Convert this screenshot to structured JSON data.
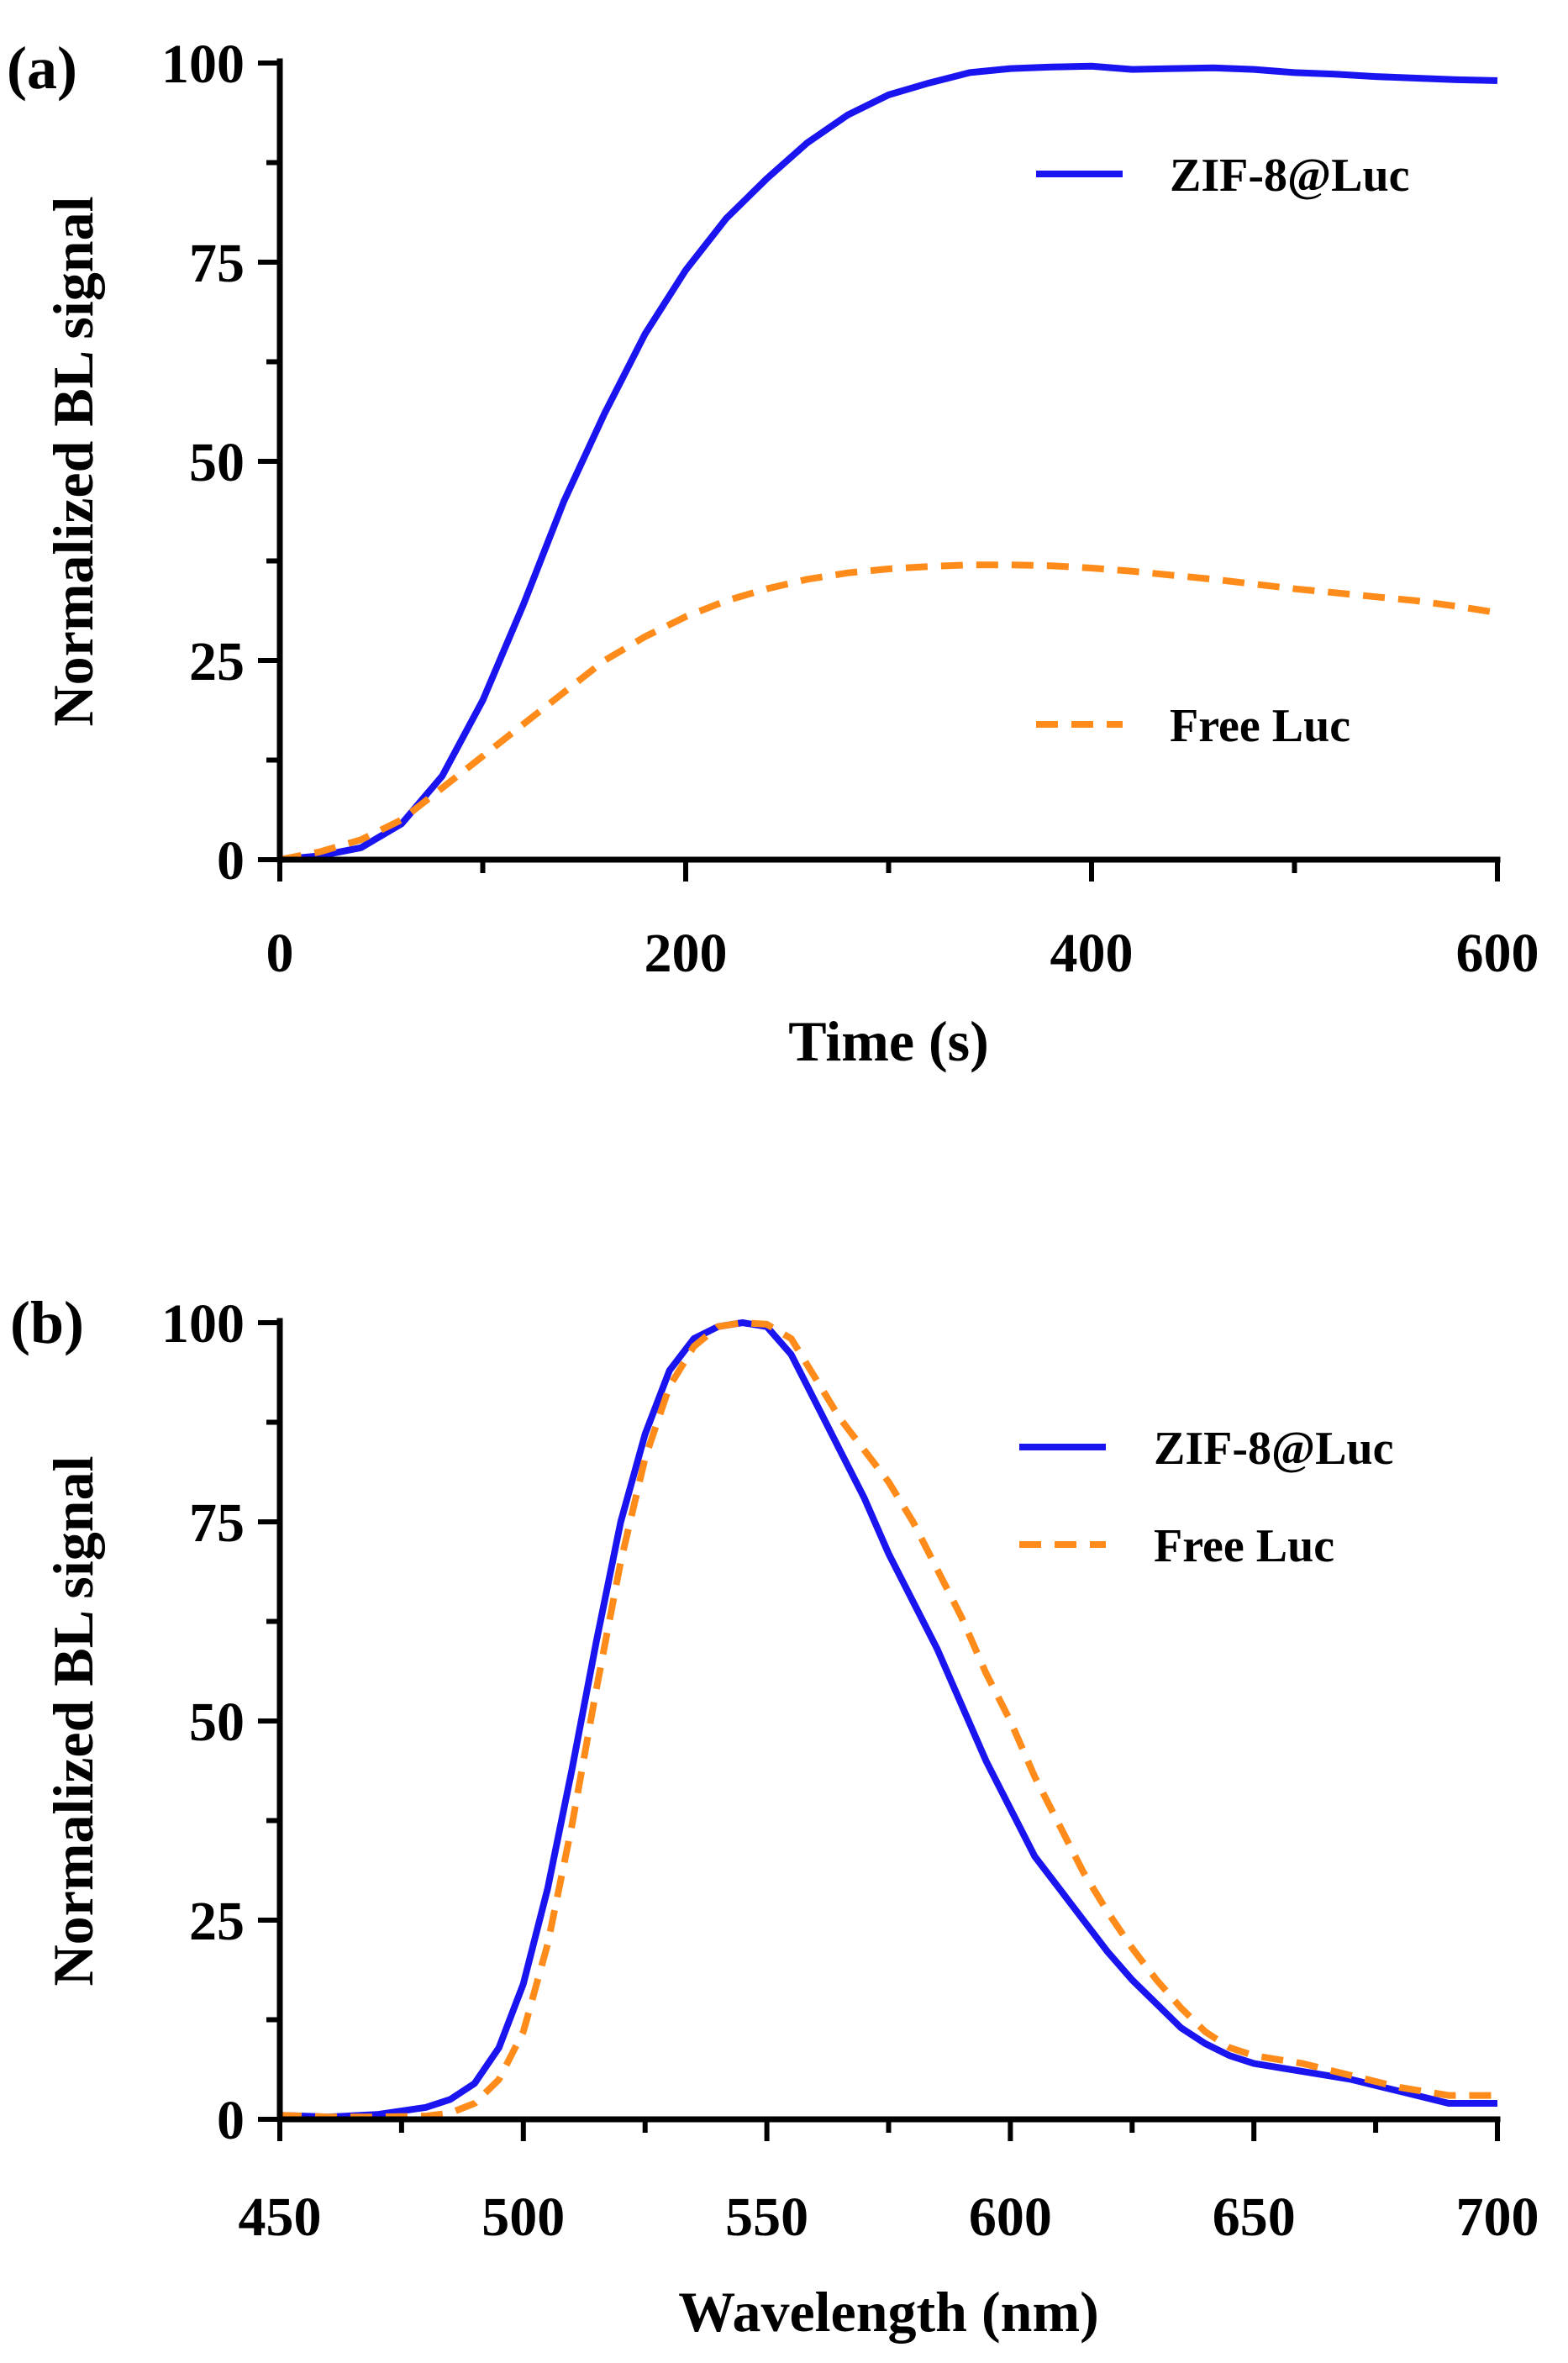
{
  "chart_data": [
    {
      "type": "line",
      "panel_label": "(a)",
      "title": "",
      "xlabel": "Time (s)",
      "ylabel": "Normalized BL signal",
      "xlim": [
        0,
        600
      ],
      "ylim": [
        0,
        100
      ],
      "xticks": [
        0,
        200,
        400,
        600
      ],
      "yticks": [
        0,
        25,
        50,
        75,
        100
      ],
      "xtick_labels": [
        "0",
        "200",
        "400",
        "600"
      ],
      "ytick_labels": [
        "0",
        "25",
        "50",
        "75",
        "100"
      ],
      "x_minor_step": 100,
      "y_minor_step": 12.5,
      "grid": false,
      "legend_position": "right",
      "series": [
        {
          "name": "ZIF-8@Luc",
          "color": "#1a14f0",
          "dash": "solid",
          "x": [
            0,
            20,
            40,
            60,
            80,
            100,
            120,
            140,
            160,
            180,
            200,
            220,
            240,
            260,
            280,
            300,
            320,
            340,
            360,
            380,
            400,
            420,
            440,
            460,
            480,
            500,
            520,
            540,
            560,
            580,
            600
          ],
          "y": [
            0,
            0.5,
            1.5,
            4.5,
            10.5,
            20,
            32,
            45,
            56,
            66,
            74,
            80.5,
            85.5,
            90,
            93.5,
            96,
            97.5,
            98.8,
            99.3,
            99.5,
            99.6,
            99.2,
            99.3,
            99.4,
            99.2,
            98.8,
            98.6,
            98.3,
            98.1,
            97.9,
            97.8
          ]
        },
        {
          "name": "Free Luc",
          "color": "#ff8c1a",
          "dash": "dashed",
          "x": [
            0,
            20,
            40,
            60,
            80,
            100,
            120,
            140,
            160,
            180,
            200,
            220,
            240,
            260,
            280,
            300,
            320,
            340,
            360,
            380,
            400,
            420,
            440,
            460,
            480,
            500,
            520,
            540,
            560,
            580,
            600
          ],
          "y": [
            0,
            1,
            2.5,
            5,
            9,
            13,
            17,
            21,
            25,
            28,
            30.5,
            32.5,
            34,
            35.2,
            36,
            36.5,
            36.8,
            37,
            37,
            36.9,
            36.6,
            36.2,
            35.7,
            35.2,
            34.6,
            34,
            33.5,
            33,
            32.5,
            31.8,
            31
          ]
        }
      ]
    },
    {
      "type": "line",
      "panel_label": "(b)",
      "title": "",
      "xlabel": "Wavelength (nm)",
      "ylabel": "Normalized BL signal",
      "xlim": [
        450,
        700
      ],
      "ylim": [
        0,
        100
      ],
      "xticks": [
        450,
        500,
        550,
        600,
        650,
        700
      ],
      "yticks": [
        0,
        25,
        50,
        75,
        100
      ],
      "xtick_labels": [
        "450",
        "500",
        "550",
        "600",
        "650",
        "700"
      ],
      "ytick_labels": [
        "0",
        "25",
        "50",
        "75",
        "100"
      ],
      "x_minor_step": 25,
      "y_minor_step": 12.5,
      "grid": false,
      "legend_position": "top-right",
      "series": [
        {
          "name": "ZIF-8@Luc",
          "color": "#1a14f0",
          "dash": "solid",
          "x": [
            450,
            460,
            470,
            480,
            485,
            490,
            495,
            500,
            505,
            510,
            515,
            520,
            525,
            530,
            535,
            540,
            545,
            550,
            555,
            560,
            565,
            570,
            575,
            580,
            585,
            590,
            595,
            600,
            605,
            610,
            615,
            620,
            625,
            630,
            635,
            640,
            645,
            650,
            660,
            670,
            680,
            690,
            700
          ],
          "y": [
            0.5,
            0.3,
            0.6,
            1.5,
            2.5,
            4.5,
            9,
            17,
            29,
            44,
            60,
            75,
            86,
            94,
            98,
            99.5,
            100,
            99.5,
            96,
            90,
            84,
            78,
            71,
            65,
            59,
            52,
            45,
            39,
            33,
            29,
            25,
            21,
            17.5,
            14.5,
            11.5,
            9.5,
            8,
            7,
            6,
            5,
            3.5,
            2,
            2
          ]
        },
        {
          "name": "Free Luc",
          "color": "#ff8c1a",
          "dash": "dashed",
          "x": [
            450,
            460,
            470,
            480,
            485,
            490,
            495,
            500,
            505,
            510,
            515,
            520,
            525,
            530,
            535,
            540,
            545,
            550,
            555,
            560,
            565,
            570,
            575,
            580,
            585,
            590,
            595,
            600,
            605,
            610,
            615,
            620,
            625,
            630,
            635,
            640,
            645,
            650,
            660,
            670,
            680,
            690,
            700
          ],
          "y": [
            0.5,
            0.3,
            0.3,
            0.4,
            0.8,
            2,
            5,
            11,
            22,
            37,
            54,
            70,
            83,
            92,
            97,
            99.5,
            100,
            99.8,
            98,
            93,
            88,
            84,
            80,
            75,
            69,
            63,
            56,
            50,
            43,
            37,
            31,
            26,
            21.5,
            17.5,
            14,
            11,
            9,
            8,
            7,
            5.5,
            4,
            3,
            3
          ]
        }
      ]
    }
  ]
}
